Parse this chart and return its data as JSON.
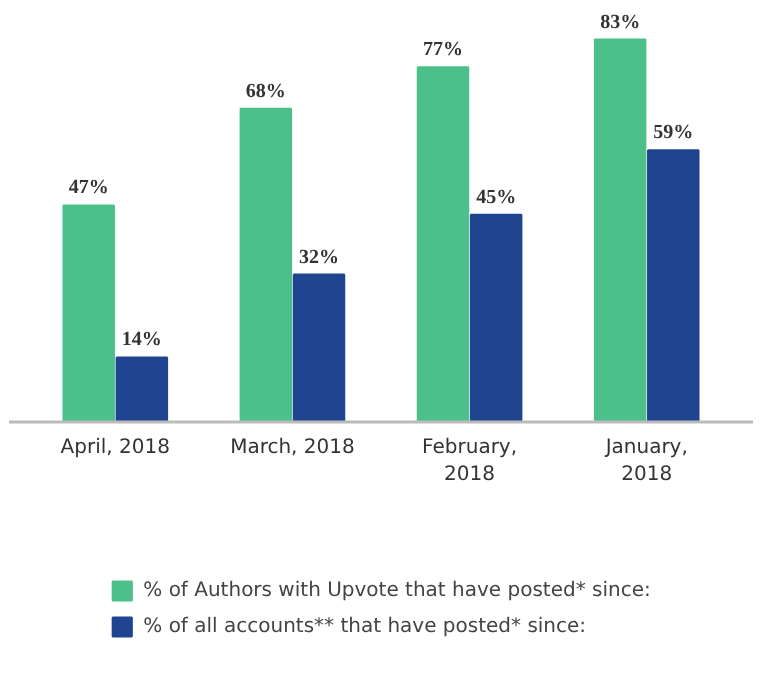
{
  "chart_data": {
    "type": "bar",
    "categories": [
      "April, 2018",
      "March, 2018",
      "February,\n2018",
      "January,\n2018"
    ],
    "series": [
      {
        "name": "% of Authors with Upvote that have posted* since:",
        "color": "#4cc08a",
        "values": [
          47,
          68,
          77,
          83
        ],
        "value_labels": [
          "47%",
          "68%",
          "77%",
          "83%"
        ]
      },
      {
        "name": "% of all accounts** that have posted* since:",
        "color": "#1f4590",
        "values": [
          14,
          32,
          45,
          59
        ],
        "value_labels": [
          "14%",
          "32%",
          "45%",
          "59%"
        ]
      }
    ],
    "legend": "bottom"
  }
}
